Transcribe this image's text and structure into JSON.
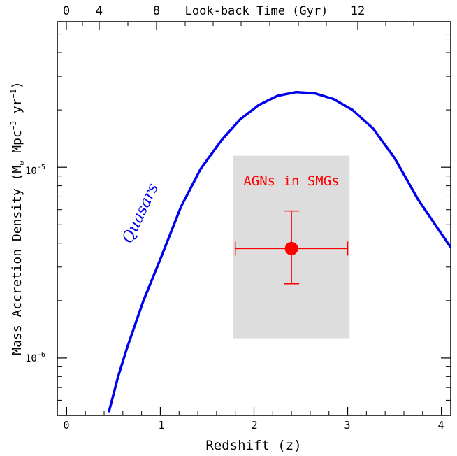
{
  "chart_data": {
    "type": "line",
    "xlabel": "Redshift (z)",
    "ylabel": "Mass Accretion Density (M",
    "ylabel_unit_suffix": " Mpc",
    "ylabel_tail": " yr",
    "top_axis_label": "Look-back Time (Gyr)",
    "top_ticks": [
      "0",
      "4",
      "8",
      "12"
    ],
    "xlim": [
      -0.1,
      4.1
    ],
    "ylim": [
      5e-07,
      5.8e-05
    ],
    "yscale": "log",
    "x_ticks": [
      "0",
      "1",
      "2",
      "3",
      "4"
    ],
    "y_ticks": [
      "10",
      "10"
    ],
    "y_tick_exponents": [
      "-5",
      "-6"
    ],
    "series": [
      {
        "name": "Quasars",
        "color": "#0000ee",
        "x": [
          0.45,
          0.55,
          0.65,
          0.82,
          1.0,
          1.22,
          1.43,
          1.65,
          1.85,
          2.05,
          2.25,
          2.45,
          2.65,
          2.85,
          3.05,
          3.27,
          3.5,
          3.75,
          4.1
        ],
        "y": [
          5.2e-07,
          8e-07,
          1.15e-06,
          2e-06,
          3.3e-06,
          6.2e-06,
          9.8e-06,
          1.38e-05,
          1.78e-05,
          2.12e-05,
          2.37e-05,
          2.48e-05,
          2.44e-05,
          2.28e-05,
          2e-05,
          1.6e-05,
          1.12e-05,
          6.8e-06,
          3.8e-06
        ]
      }
    ],
    "points": [
      {
        "name": "AGNs in SMGs",
        "color": "#ff0000",
        "x": 2.4,
        "y": 3.75e-06,
        "x_err": [
          1.8,
          3.0
        ],
        "y_err": [
          2.45e-06,
          5.9e-06
        ],
        "shaded_region": {
          "x": [
            1.78,
            3.02
          ],
          "y": [
            1.27e-06,
            1.15e-05
          ],
          "color": "#dddddd"
        }
      }
    ],
    "annotations": [
      {
        "text": "AGNs in SMGs",
        "color": "#ff0000"
      },
      {
        "text": "Quasars",
        "color": "#0000ee"
      }
    ]
  }
}
